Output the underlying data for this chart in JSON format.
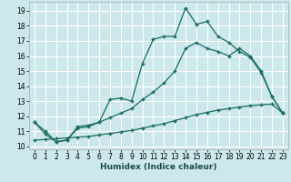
{
  "xlabel": "Humidex (Indice chaleur)",
  "bg_color": "#cce8ec",
  "grid_color": "#ffffff",
  "line_color": "#1a6b5e",
  "xlim": [
    -0.5,
    23.5
  ],
  "ylim": [
    9.8,
    19.6
  ],
  "xticks": [
    0,
    1,
    2,
    3,
    4,
    5,
    6,
    7,
    8,
    9,
    10,
    11,
    12,
    13,
    14,
    15,
    16,
    17,
    18,
    19,
    20,
    21,
    22,
    23
  ],
  "yticks": [
    10,
    11,
    12,
    13,
    14,
    15,
    16,
    17,
    18,
    19
  ],
  "series1_x": [
    0,
    1,
    2,
    3,
    4,
    5,
    6,
    7,
    8,
    9,
    10,
    11,
    12,
    13,
    14,
    15,
    16,
    17,
    18,
    19,
    20,
    21,
    22,
    23
  ],
  "series1_y": [
    11.6,
    10.8,
    10.3,
    10.4,
    11.3,
    11.4,
    11.6,
    13.1,
    13.2,
    13.0,
    15.5,
    17.1,
    17.3,
    17.3,
    19.2,
    18.1,
    18.3,
    17.3,
    16.9,
    16.3,
    15.9,
    14.9,
    13.3,
    12.2
  ],
  "series2_x": [
    0,
    1,
    2,
    3,
    4,
    5,
    6,
    7,
    8,
    9,
    10,
    11,
    12,
    13,
    14,
    15,
    16,
    17,
    18,
    19,
    20,
    21,
    22,
    23
  ],
  "series2_y": [
    11.6,
    11.0,
    10.3,
    10.4,
    11.2,
    11.3,
    11.6,
    11.9,
    12.2,
    12.5,
    13.1,
    13.6,
    14.2,
    15.0,
    16.5,
    16.9,
    16.5,
    16.3,
    16.0,
    16.5,
    16.0,
    15.0,
    13.3,
    12.2
  ],
  "series3_x": [
    0,
    1,
    2,
    3,
    4,
    5,
    6,
    7,
    8,
    9,
    10,
    11,
    12,
    13,
    14,
    15,
    16,
    17,
    18,
    19,
    20,
    21,
    22,
    23
  ],
  "series3_y": [
    10.4,
    10.45,
    10.5,
    10.55,
    10.6,
    10.65,
    10.75,
    10.85,
    10.95,
    11.05,
    11.2,
    11.35,
    11.5,
    11.7,
    11.9,
    12.1,
    12.25,
    12.4,
    12.5,
    12.6,
    12.7,
    12.75,
    12.8,
    12.2
  ]
}
